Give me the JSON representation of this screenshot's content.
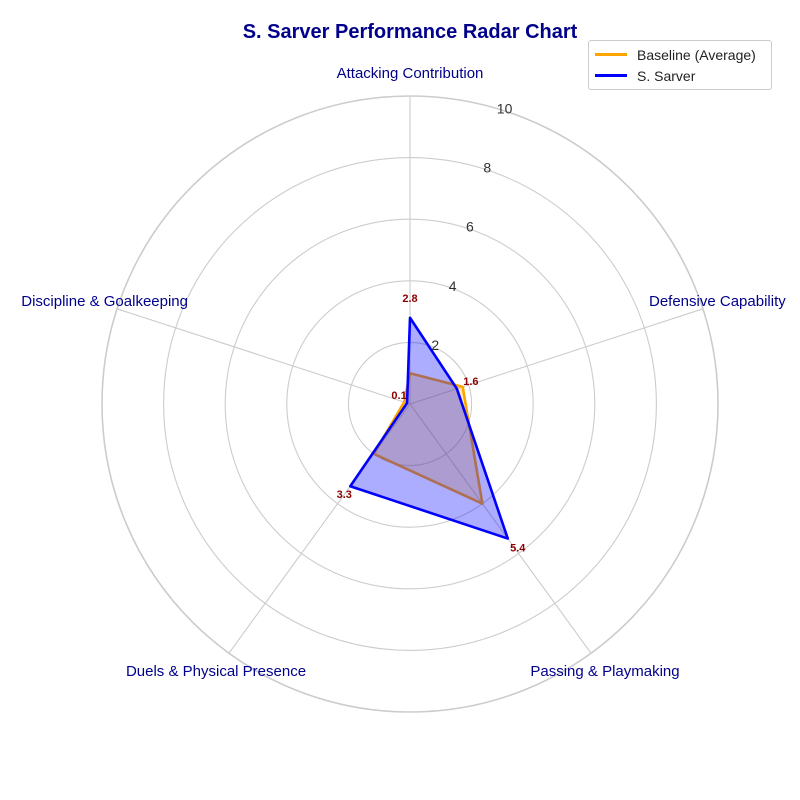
{
  "chart_data": {
    "type": "radar",
    "title": "S. Sarver Performance Radar Chart",
    "axes": [
      "Attacking Contribution",
      "Defensive Capability",
      "Passing & Playmaking",
      "Duels & Physical Presence",
      "Discipline & Goalkeeping"
    ],
    "radial_ticks": [
      2,
      4,
      6,
      8,
      10
    ],
    "radial_tick_labels": [
      "2",
      "4",
      "6",
      "8",
      "10"
    ],
    "rlim": [
      0,
      10
    ],
    "grid": true,
    "legend_position": "top-right",
    "series": [
      {
        "name": "Baseline (Average)",
        "values": [
          1.0,
          1.8,
          4.0,
          2.0,
          0.2
        ],
        "color": "#FFA500",
        "fill": "#FFA500"
      },
      {
        "name": "S. Sarver",
        "values": [
          2.8,
          1.6,
          5.4,
          3.3,
          0.1
        ],
        "color": "#0000FF",
        "fill": "#0000FF"
      }
    ],
    "data_labels": [
      "2.8",
      "1.6",
      "5.4",
      "3.3",
      "0.1"
    ],
    "colors": {
      "title": "#00008B",
      "axis_labels": "#00008B",
      "data_labels": "#8B0000",
      "grid": "#CCCCCC"
    }
  }
}
